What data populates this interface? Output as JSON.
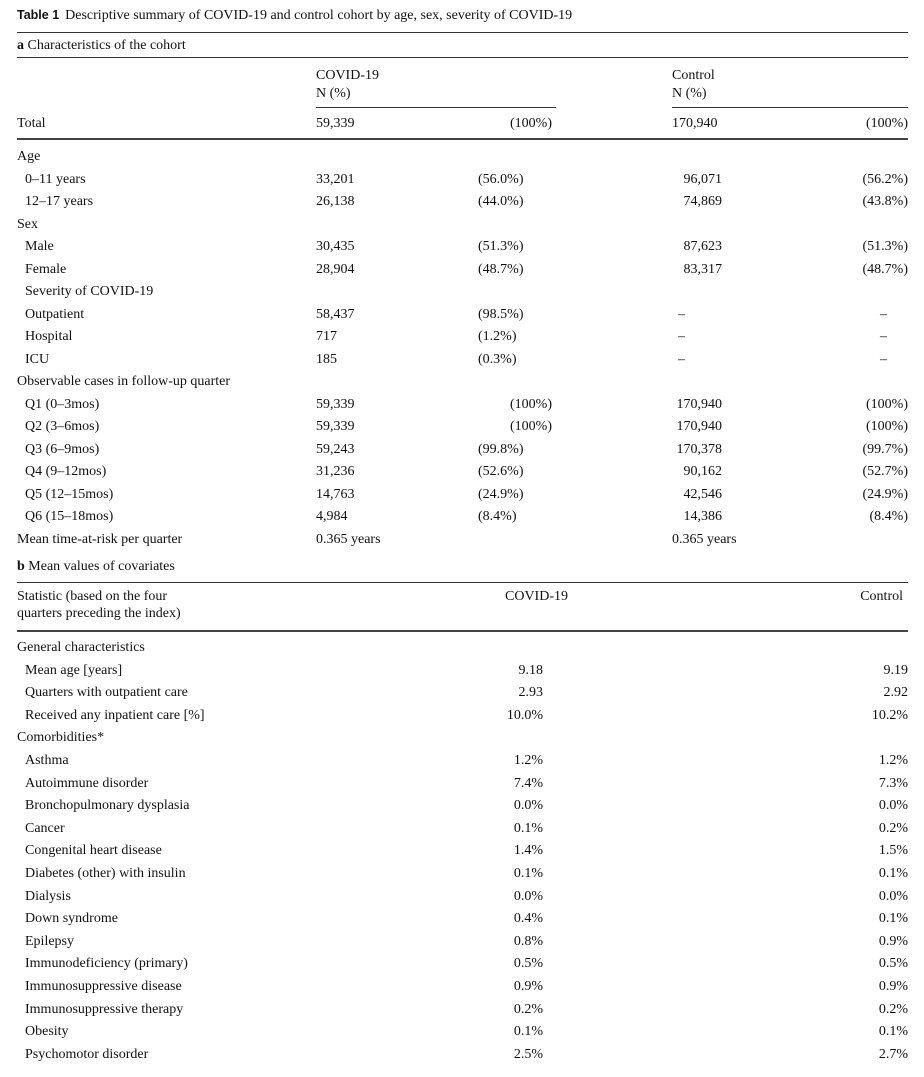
{
  "title": {
    "label": "Table 1",
    "text": "Descriptive summary of COVID-19 and control cohort by age, sex, severity of COVID-19"
  },
  "part_a": {
    "letter": "a",
    "heading": "Characteristics of the cohort",
    "col_covid": "COVID-19",
    "col_covid_sub": "N (%)",
    "col_control": "Control",
    "col_control_sub": "N (%)",
    "total": {
      "label": "Total",
      "covid_n": "59,339",
      "covid_pct": "(100%)",
      "control_n": "170,940",
      "control_pct": "(100%)"
    },
    "rows": [
      {
        "label": "Age",
        "indent": 0
      },
      {
        "label": "0–11 years",
        "indent": 1,
        "covid_n": "33,201",
        "covid_pct": "(56.0%)",
        "control_n": "96,071",
        "control_pct": "(56.2%)"
      },
      {
        "label": "12–17 years",
        "indent": 1,
        "covid_n": "26,138",
        "covid_pct": "(44.0%)",
        "control_n": "74,869",
        "control_pct": "(43.8%)"
      },
      {
        "label": "Sex",
        "indent": 0
      },
      {
        "label": "Male",
        "indent": 1,
        "covid_n": "30,435",
        "covid_pct": "(51.3%)",
        "control_n": "87,623",
        "control_pct": "(51.3%)"
      },
      {
        "label": "Female",
        "indent": 1,
        "covid_n": "28,904",
        "covid_pct": "(48.7%)",
        "control_n": "83,317",
        "control_pct": "(48.7%)"
      },
      {
        "label": "Severity of COVID-19",
        "indent": 1
      },
      {
        "label": "Outpatient",
        "indent": 1,
        "covid_n": "58,437",
        "covid_pct": "(98.5%)",
        "control_n": "–",
        "control_pct": "–"
      },
      {
        "label": "Hospital",
        "indent": 1,
        "covid_n": "717",
        "covid_pct": "(1.2%)",
        "control_n": "–",
        "control_pct": "–"
      },
      {
        "label": "ICU",
        "indent": 1,
        "covid_n": "185",
        "covid_pct": "(0.3%)",
        "control_n": "–",
        "control_pct": "–"
      },
      {
        "label": "Observable cases in follow-up quarter",
        "indent": 0
      },
      {
        "label": "Q1 (0–3mos)",
        "indent": 1,
        "covid_n": "59,339",
        "covid_pct": "(100%)",
        "control_n": "170,940",
        "control_pct": "(100%)"
      },
      {
        "label": "Q2 (3–6mos)",
        "indent": 1,
        "covid_n": "59,339",
        "covid_pct": "(100%)",
        "control_n": "170,940",
        "control_pct": "(100%)"
      },
      {
        "label": "Q3 (6–9mos)",
        "indent": 1,
        "covid_n": "59,243",
        "covid_pct": "(99.8%)",
        "control_n": "170,378",
        "control_pct": "(99.7%)"
      },
      {
        "label": "Q4 (9–12mos)",
        "indent": 1,
        "covid_n": "31,236",
        "covid_pct": "(52.6%)",
        "control_n": "90,162",
        "control_pct": "(52.7%)"
      },
      {
        "label": "Q5 (12–15mos)",
        "indent": 1,
        "covid_n": "14,763",
        "covid_pct": "(24.9%)",
        "control_n": "42,546",
        "control_pct": "(24.9%)"
      },
      {
        "label": "Q6 (15–18mos)",
        "indent": 1,
        "covid_n": "4,984",
        "covid_pct": "(8.4%)",
        "control_n": "14,386",
        "control_pct": "(8.4%)"
      },
      {
        "label": "Mean time-at-risk per quarter",
        "indent": 0,
        "covid_text": "0.365 years",
        "control_text": "0.365 years"
      }
    ]
  },
  "part_b": {
    "letter": "b",
    "heading": "Mean values of covariates",
    "col_stat_line1": "Statistic (based on the four",
    "col_stat_line2": "quarters preceding the index)",
    "col_covid": "COVID-19",
    "col_control": "Control",
    "rows": [
      {
        "label": "General characteristics",
        "indent": 0
      },
      {
        "label": "Mean age [years]",
        "indent": 1,
        "covid": "9.18",
        "control": "9.19"
      },
      {
        "label": "Quarters with outpatient care",
        "indent": 1,
        "covid": "2.93",
        "control": "2.92"
      },
      {
        "label": "Received any inpatient care [%]",
        "indent": 1,
        "covid": "10.0%",
        "control": "10.2%"
      },
      {
        "label": "Comorbidities*",
        "indent": 0
      },
      {
        "label": "Asthma",
        "indent": 1,
        "covid": "1.2%",
        "control": "1.2%"
      },
      {
        "label": "Autoimmune disorder",
        "indent": 1,
        "covid": "7.4%",
        "control": "7.3%"
      },
      {
        "label": "Bronchopulmonary dysplasia",
        "indent": 1,
        "covid": "0.0%",
        "control": "0.0%"
      },
      {
        "label": "Cancer",
        "indent": 1,
        "covid": "0.1%",
        "control": "0.2%"
      },
      {
        "label": "Congenital heart disease",
        "indent": 1,
        "covid": "1.4%",
        "control": "1.5%"
      },
      {
        "label": "Diabetes (other) with insulin",
        "indent": 1,
        "covid": "0.1%",
        "control": "0.1%"
      },
      {
        "label": "Dialysis",
        "indent": 1,
        "covid": "0.0%",
        "control": "0.0%"
      },
      {
        "label": "Down syndrome",
        "indent": 1,
        "covid": "0.4%",
        "control": "0.1%"
      },
      {
        "label": "Epilepsy",
        "indent": 1,
        "covid": "0.8%",
        "control": "0.9%"
      },
      {
        "label": "Immunodeficiency (primary)",
        "indent": 1,
        "covid": "0.5%",
        "control": "0.5%"
      },
      {
        "label": "Immunosuppressive disease",
        "indent": 1,
        "covid": "0.9%",
        "control": "0.9%"
      },
      {
        "label": "Immunosuppressive therapy",
        "indent": 1,
        "covid": "0.2%",
        "control": "0.2%"
      },
      {
        "label": "Obesity",
        "indent": 1,
        "covid": "0.1%",
        "control": "0.1%"
      },
      {
        "label": "Psychomotor disorder",
        "indent": 1,
        "covid": "2.5%",
        "control": "2.7%"
      }
    ]
  }
}
